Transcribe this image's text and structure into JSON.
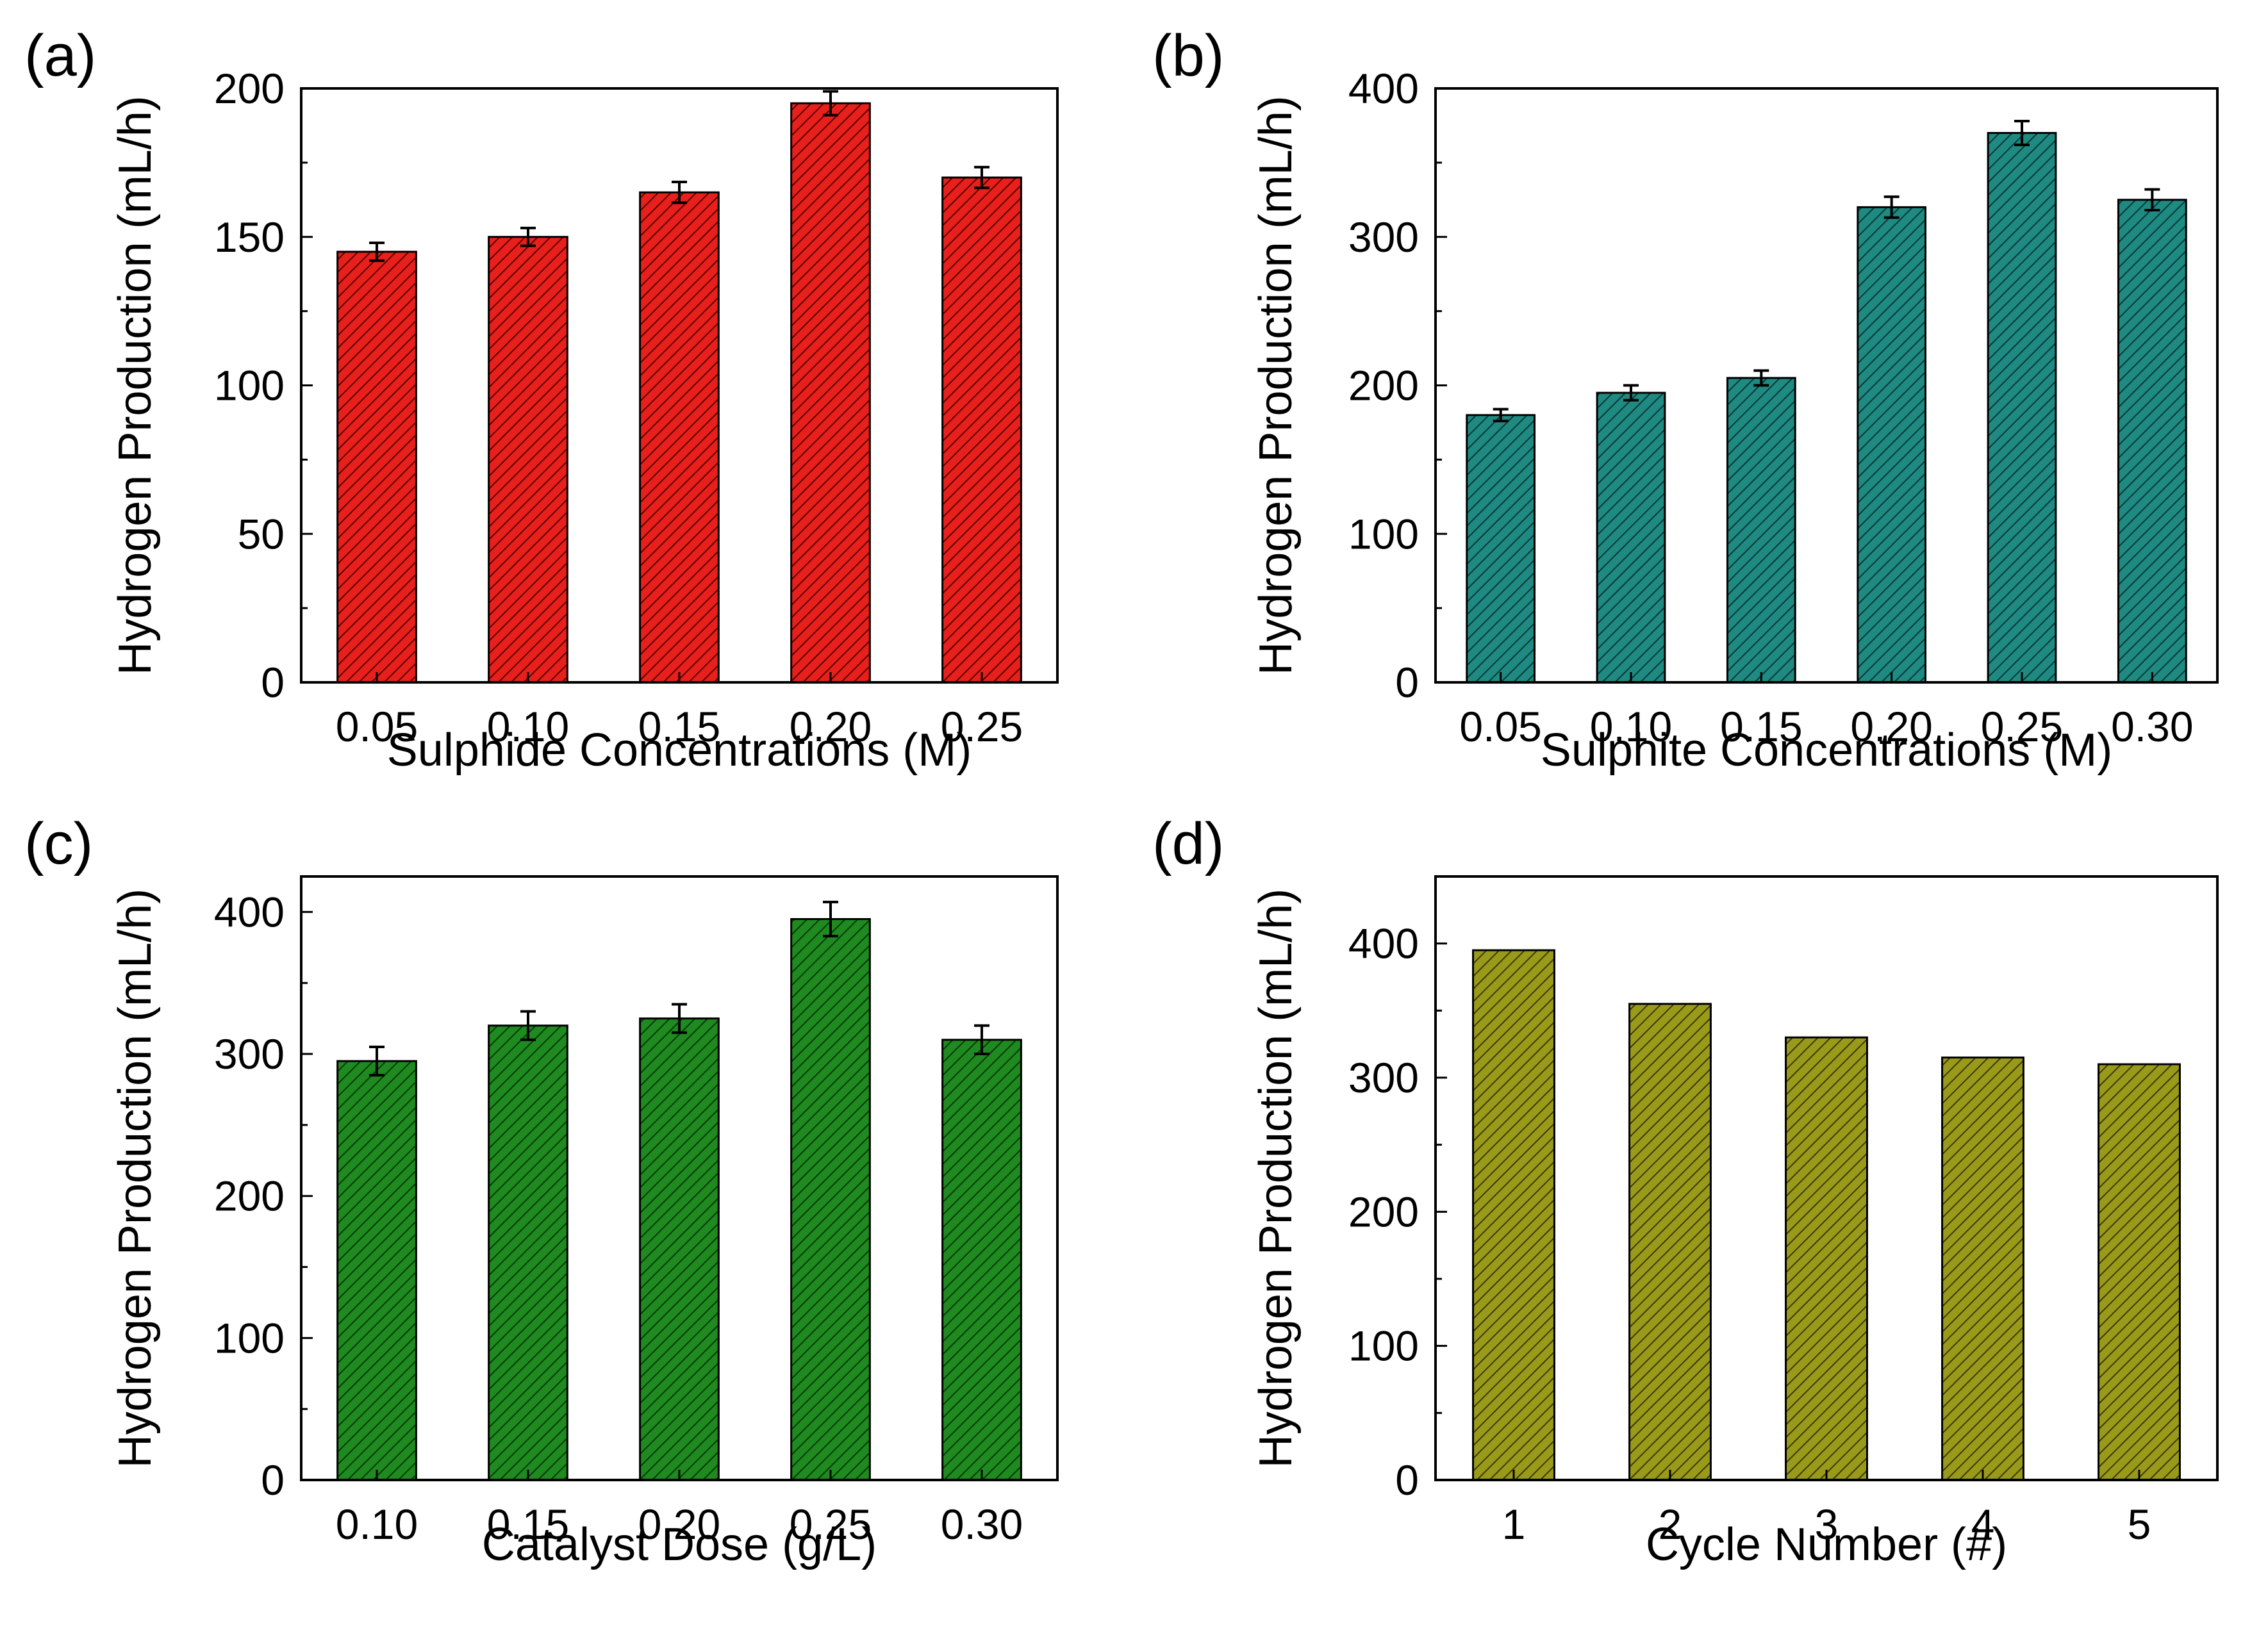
{
  "chart_data": [
    {
      "type": "bar",
      "panel_label": "(a)",
      "categories": [
        "0.05",
        "0.10",
        "0.15",
        "0.20",
        "0.25"
      ],
      "values": [
        145,
        150,
        165,
        195,
        170
      ],
      "errors": [
        3,
        3,
        3.5,
        4,
        3.5
      ],
      "xlabel": "Sulphide Concentrations (M)",
      "ylabel": "Hydrogen Production (mL/h)",
      "ylim": [
        0,
        200
      ],
      "yticks": [
        "0",
        "50",
        "100",
        "150",
        "200"
      ],
      "color": "#e8201c",
      "hatch_color": "#5a0000"
    },
    {
      "type": "bar",
      "panel_label": "(b)",
      "categories": [
        "0.05",
        "0.10",
        "0.15",
        "0.20",
        "0.25",
        "0.30"
      ],
      "values": [
        180,
        195,
        205,
        320,
        370,
        325
      ],
      "errors": [
        4,
        5,
        5,
        7,
        8,
        7
      ],
      "xlabel": "Sulphite Concentrations (M)",
      "ylabel": "Hydrogen Production (mL/h)",
      "ylim": [
        0,
        400
      ],
      "yticks": [
        "0",
        "100",
        "200",
        "300",
        "400"
      ],
      "color": "#1e8a82",
      "hatch_color": "#0a3834"
    },
    {
      "type": "bar",
      "panel_label": "(c)",
      "categories": [
        "0.10",
        "0.15",
        "0.20",
        "0.25",
        "0.30"
      ],
      "values": [
        295,
        320,
        325,
        395,
        310
      ],
      "errors": [
        10,
        10,
        10,
        12,
        10
      ],
      "xlabel": "Catalyst Dose (g/L)",
      "ylabel": "Hydrogen Production (mL/h)",
      "ylim": [
        0,
        425
      ],
      "yticks": [
        "0",
        "100",
        "200",
        "300",
        "400"
      ],
      "color": "#1f8a1f",
      "hatch_color": "#073a07"
    },
    {
      "type": "bar",
      "panel_label": "(d)",
      "categories": [
        "1",
        "2",
        "3",
        "4",
        "5"
      ],
      "values": [
        395,
        355,
        330,
        315,
        310
      ],
      "errors": [],
      "xlabel": "Cycle Number (#)",
      "ylabel": "Hydrogen Production (mL/h)",
      "ylim": [
        0,
        450
      ],
      "yticks": [
        "0",
        "100",
        "200",
        "300",
        "400"
      ],
      "color": "#9a9a1a",
      "hatch_color": "#3a3a05"
    }
  ]
}
